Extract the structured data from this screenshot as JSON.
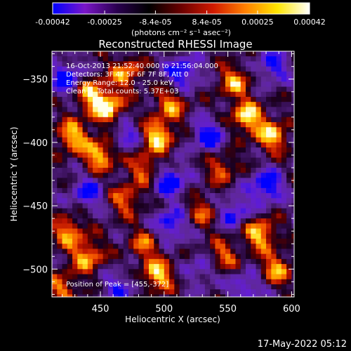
{
  "colorbar": {
    "tick_labels": [
      "-0.00042",
      "-0.00025",
      "-8.4e-05",
      "8.4e-05",
      "0.00025",
      "0.00042"
    ],
    "tick_values": [
      -0.00042,
      -0.00025,
      -8.4e-05,
      8.4e-05,
      0.00025,
      0.00042
    ],
    "range": [
      -0.00042,
      0.00042
    ],
    "unit_label": "(photons cm⁻² s⁻¹ asec⁻²)",
    "colors": [
      "#0000ff",
      "#7a16c8",
      "#2a0050",
      "#000000",
      "#6a0000",
      "#d11a00",
      "#ff8000",
      "#ffe600",
      "#ffffff"
    ]
  },
  "chart_data": {
    "type": "heatmap",
    "title": "Reconstructed RHESSI Image",
    "xlabel": "Heliocentric X (arcsec)",
    "ylabel": "Heliocentric Y (arcsec)",
    "xlim": [
      412,
      602
    ],
    "ylim": [
      -522,
      -328
    ],
    "x_ticks": [
      450,
      500,
      550,
      600
    ],
    "y_ticks": [
      -350,
      -400,
      -450,
      -500
    ],
    "x_tick_labels": [
      "450",
      "500",
      "550",
      "600"
    ],
    "y_tick_labels": [
      "−350",
      "−400",
      "−450",
      "−500"
    ],
    "annotations": [
      "16-Oct-2013 21:52:40.000 to 21:56:04.000",
      "Detectors: 3F 4F 5F 6F 7F 8F, Att 0",
      "Energy Range: 12.0 - 25.0 keV",
      "Clean     Total counts: 5.37E+03"
    ],
    "peak_label": "Position of Peak = [455,-372]",
    "peak": [
      455,
      -372
    ],
    "bright_regions": [
      {
        "x": 455,
        "y": -372,
        "v": 1.0
      },
      {
        "x": 440,
        "y": -360,
        "v": 0.75
      },
      {
        "x": 470,
        "y": -345,
        "v": 0.7
      },
      {
        "x": 428,
        "y": -395,
        "v": 0.8
      },
      {
        "x": 450,
        "y": -410,
        "v": 0.85
      },
      {
        "x": 495,
        "y": -395,
        "v": 0.9
      },
      {
        "x": 505,
        "y": -370,
        "v": 0.65
      },
      {
        "x": 485,
        "y": -420,
        "v": 0.6
      },
      {
        "x": 565,
        "y": -380,
        "v": 0.9
      },
      {
        "x": 585,
        "y": -395,
        "v": 0.8
      },
      {
        "x": 555,
        "y": -352,
        "v": 0.7
      },
      {
        "x": 545,
        "y": -420,
        "v": 0.55
      },
      {
        "x": 470,
        "y": -445,
        "v": 0.6
      },
      {
        "x": 530,
        "y": -455,
        "v": 0.5
      },
      {
        "x": 425,
        "y": -470,
        "v": 0.7
      },
      {
        "x": 440,
        "y": -490,
        "v": 0.75
      },
      {
        "x": 485,
        "y": -480,
        "v": 0.55
      },
      {
        "x": 495,
        "y": -505,
        "v": 0.85
      },
      {
        "x": 545,
        "y": -490,
        "v": 0.6
      },
      {
        "x": 575,
        "y": -472,
        "v": 0.85
      },
      {
        "x": 588,
        "y": -500,
        "v": 0.7
      },
      {
        "x": 420,
        "y": -515,
        "v": 0.6
      }
    ],
    "dark_regions": [
      {
        "x": 425,
        "y": -350,
        "v": -0.8
      },
      {
        "x": 515,
        "y": -345,
        "v": -0.7
      },
      {
        "x": 585,
        "y": -340,
        "v": -0.6
      },
      {
        "x": 470,
        "y": -395,
        "v": -0.5
      },
      {
        "x": 535,
        "y": -395,
        "v": -0.7
      },
      {
        "x": 505,
        "y": -430,
        "v": -0.75
      },
      {
        "x": 580,
        "y": -435,
        "v": -0.8
      },
      {
        "x": 440,
        "y": -440,
        "v": -0.6
      },
      {
        "x": 555,
        "y": -455,
        "v": -0.6
      },
      {
        "x": 505,
        "y": -465,
        "v": -0.7
      },
      {
        "x": 465,
        "y": -515,
        "v": -0.5
      },
      {
        "x": 565,
        "y": -515,
        "v": -0.55
      },
      {
        "x": 530,
        "y": -500,
        "v": -0.45
      }
    ]
  },
  "footer": {
    "timestamp": "17-May-2022 05:12"
  }
}
